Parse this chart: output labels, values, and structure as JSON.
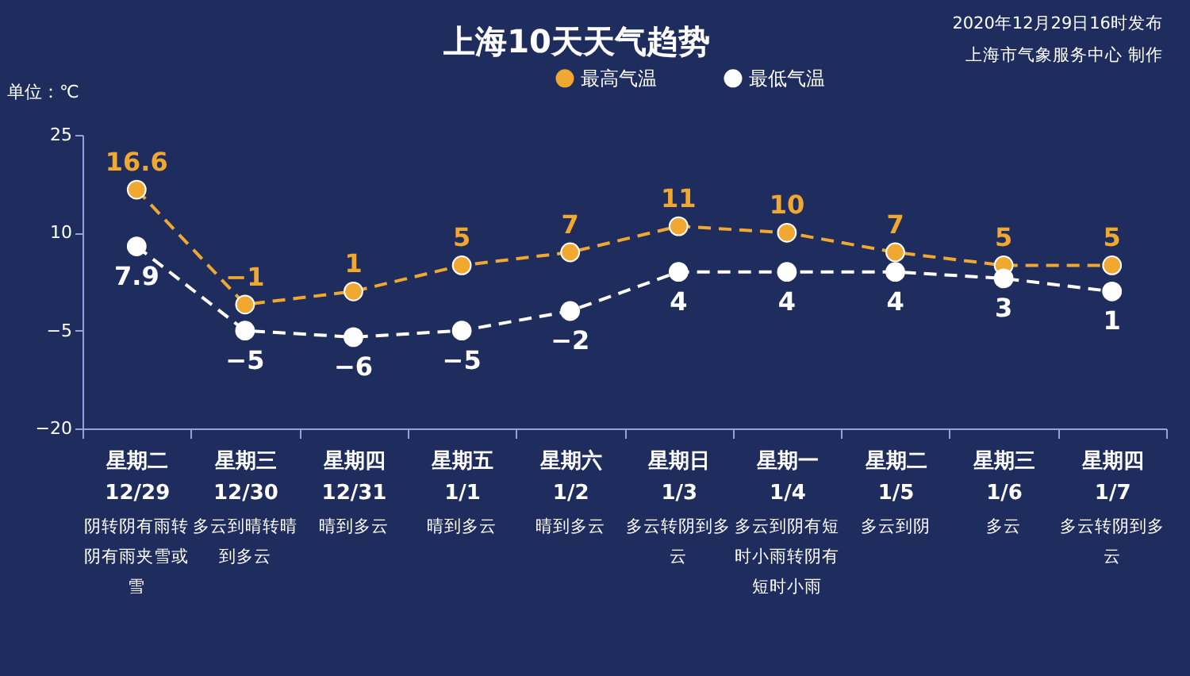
{
  "chart_data": {
    "type": "line",
    "title": "上海10天天气趋势",
    "ylabel": "单位：℃",
    "categories": [
      "星期二 12/29",
      "星期三 12/30",
      "星期四 12/31",
      "星期五 1/1",
      "星期六 1/2",
      "星期日 1/3",
      "星期一 1/4",
      "星期二 1/5",
      "星期三 1/6",
      "星期四 1/7"
    ],
    "series": [
      {
        "name": "最高气温",
        "color": "#f0a830",
        "values": [
          16.6,
          -1,
          1,
          5,
          7,
          11,
          10,
          7,
          5,
          5
        ]
      },
      {
        "name": "最低气温",
        "color": "#ffffff",
        "values": [
          7.9,
          -5,
          -6,
          -5,
          -2,
          4,
          4,
          4,
          3,
          1
        ]
      }
    ],
    "ylim": [
      -20,
      25
    ],
    "yticks": [
      -20,
      -5,
      10,
      25
    ],
    "grid": false,
    "legend": "top right",
    "marker": "circle",
    "line_style": "dashed",
    "data_labels": true,
    "annotations": [
      "2020年12月29日16时发布",
      "上海市气象服务中心 制作",
      "阴转阴有雨转阴有雨夹雪或雪",
      "多云到晴转晴到多云",
      "晴到多云",
      "晴到多云",
      "晴到多云",
      "多云转阴到多云",
      "多云到阴有短时小雨转阴有短时小雨",
      "多云到阴",
      "多云",
      "多云转阴到多云"
    ]
  }
}
